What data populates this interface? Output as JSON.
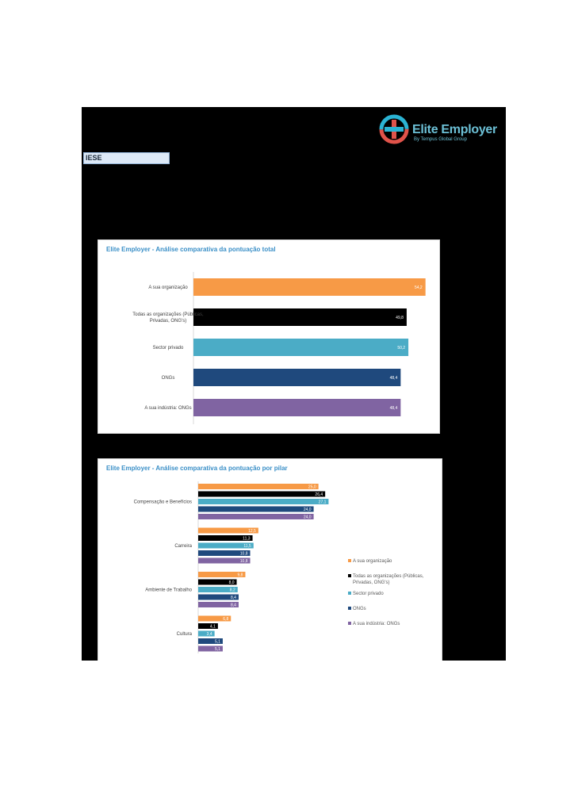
{
  "logo": {
    "title": "Elite Employer",
    "subtitle": "By Tempus Global Group"
  },
  "header": {
    "company": "IESE"
  },
  "colors": {
    "sua_organizacao": "#f79a46",
    "todas": "#000000",
    "sector_privado": "#4bacc6",
    "ongs": "#1f497d",
    "industria": "#8064a2"
  },
  "chart_data": [
    {
      "type": "bar",
      "title": "Elite Employer - Análise comparativa da pontuação total",
      "orientation": "horizontal",
      "categories": [
        "A sua organização",
        "Todas as organizações (Públicas, Privadas, ONG's)",
        "Sector privado",
        "ONGs",
        "A sua indústria: ONGs"
      ],
      "category_lines": [
        [
          "A sua organização"
        ],
        [
          "Todas as organizações (Públicas,",
          "Privadas, ONG's)"
        ],
        [
          "Sector privado"
        ],
        [
          "ONGs"
        ],
        [
          "A sua indústria: ONGs"
        ]
      ],
      "values": [
        54.2,
        49.8,
        50.2,
        48.4,
        48.4
      ],
      "value_labels": [
        "54,2",
        "49,8",
        "50,2",
        "48,4",
        "48,4"
      ],
      "colors": [
        "#f79a46",
        "#000000",
        "#4bacc6",
        "#1f497d",
        "#8064a2"
      ],
      "xlim": [
        0,
        60
      ]
    },
    {
      "type": "bar",
      "title": "Elite Employer - Análise comparativa da pontuação por pilar",
      "orientation": "horizontal",
      "categories": [
        "Compensação e Benefícios",
        "Carreira",
        "Ambiente de Trabalho",
        "Cultura"
      ],
      "series": [
        {
          "name": "A sua organização",
          "values": [
            25.0,
            12.5,
            9.8,
            6.8
          ],
          "labels": [
            "25,0",
            "12,5",
            "9,8",
            "6,8"
          ],
          "color": "#f79a46"
        },
        {
          "name": "Todas as organizações (Públicas, Privadas, ONG's)",
          "name_lines": [
            "Todas as organizações (Públicas,",
            "Privadas, ONG's)"
          ],
          "values": [
            26.4,
            11.3,
            8.0,
            4.1
          ],
          "labels": [
            "26,4",
            "11,3",
            "8,0",
            "4,1"
          ],
          "color": "#000000"
        },
        {
          "name": "Sector privado",
          "values": [
            27.1,
            11.5,
            8.2,
            3.4
          ],
          "labels": [
            "27,1",
            "11,5",
            "8,2",
            "3,4"
          ],
          "color": "#4bacc6"
        },
        {
          "name": "ONGs",
          "values": [
            24.0,
            10.8,
            8.4,
            5.1
          ],
          "labels": [
            "24,0",
            "10,8",
            "8,4",
            "5,1"
          ],
          "color": "#1f497d"
        },
        {
          "name": "A sua indústria: ONGs",
          "values": [
            24.0,
            10.8,
            8.4,
            5.1
          ],
          "labels": [
            "24,0",
            "10,8",
            "8,4",
            "5,1"
          ],
          "color": "#8064a2"
        }
      ],
      "xlim": [
        0,
        30
      ],
      "legend": "right"
    }
  ]
}
